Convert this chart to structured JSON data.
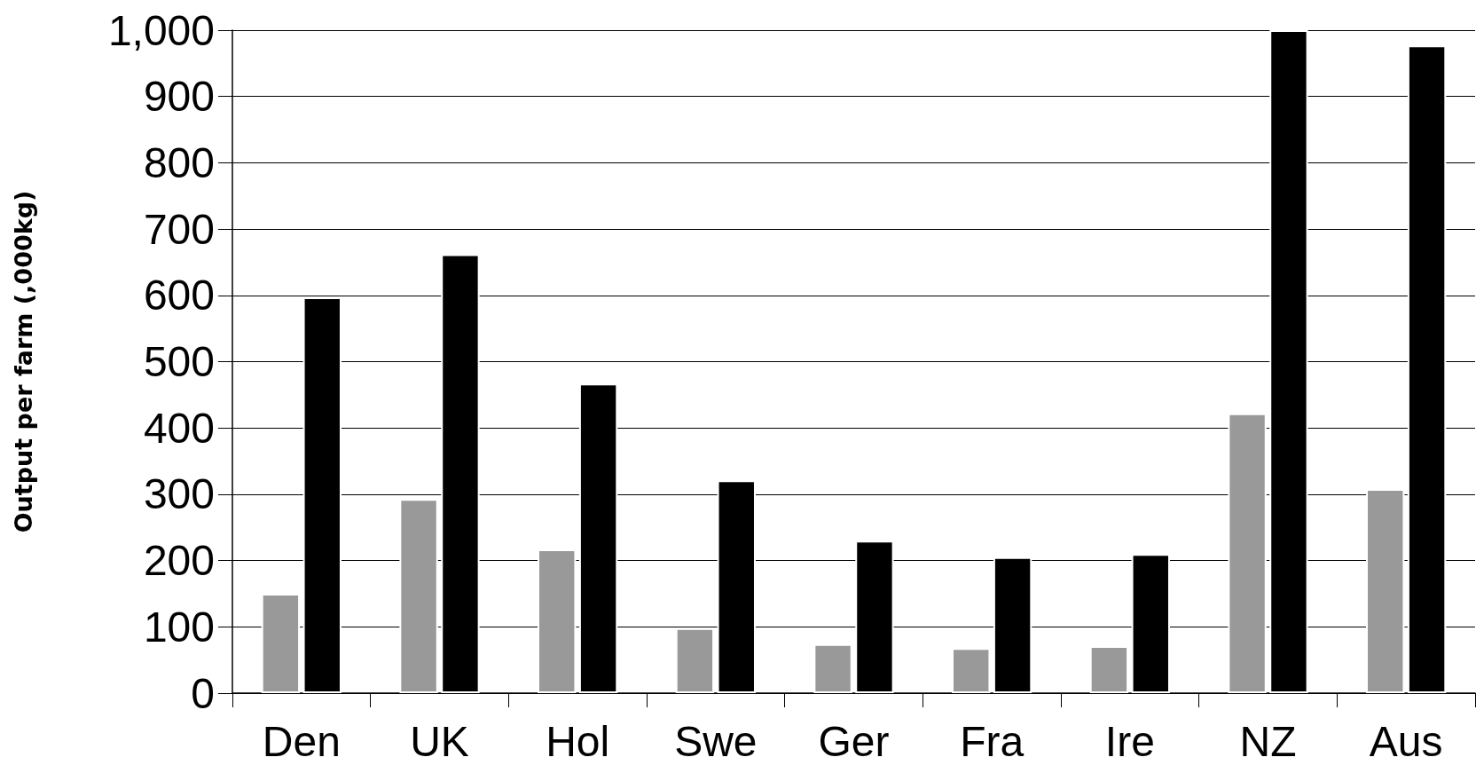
{
  "chart_data": {
    "type": "bar",
    "ylabel": "Output per farm (,000kg)",
    "categories": [
      "Den",
      "UK",
      "Hol",
      "Swe",
      "Ger",
      "Fra",
      "Ire",
      "NZ",
      "Aus"
    ],
    "series": [
      {
        "color": "#999999",
        "values": [
          150,
          293,
          217,
          98,
          74,
          68,
          71,
          422,
          308
        ]
      },
      {
        "color": "#000000",
        "values": [
          597,
          662,
          467,
          321,
          230,
          205,
          210,
          1000,
          977
        ]
      }
    ],
    "ylim": [
      0,
      1000
    ],
    "yticks": [
      0,
      100,
      200,
      300,
      400,
      500,
      600,
      700,
      800,
      900,
      {
        "value": 1000,
        "label": "1,000"
      }
    ],
    "grid": "y"
  }
}
